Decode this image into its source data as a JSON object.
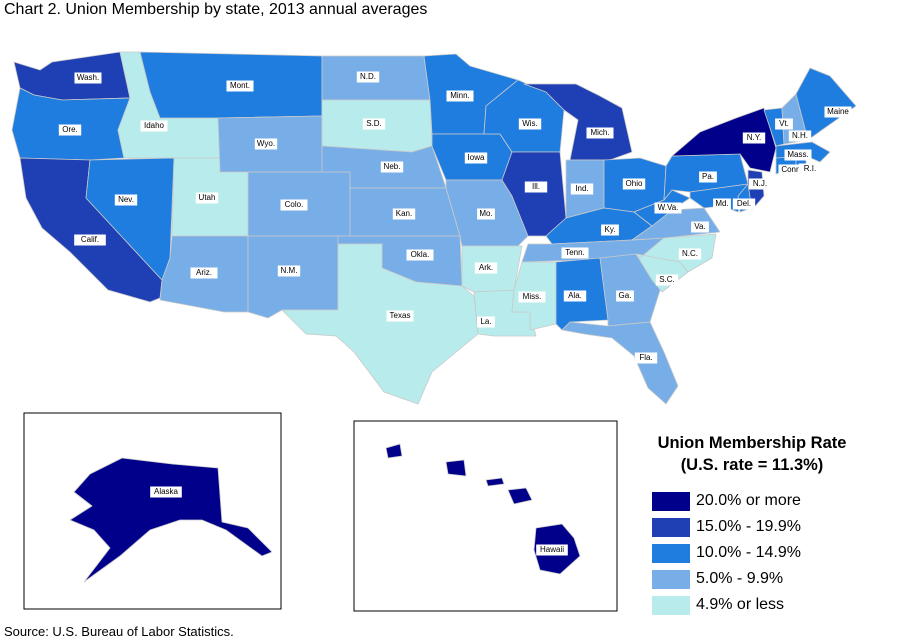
{
  "title": "Chart 2.  Union Membership by state, 2013 annual averages",
  "source": "Source: U.S. Bureau of Labor Statistics.",
  "legend": {
    "title_line1": "Union Membership Rate",
    "title_line2": "(U.S. rate = 11.3%)",
    "classes": [
      {
        "label": "20.0% or more",
        "color": "#00008b"
      },
      {
        "label": "15.0% - 19.9%",
        "color": "#1f3fb5"
      },
      {
        "label": "10.0% - 14.9%",
        "color": "#1f7de0"
      },
      {
        "label": "5.0% - 9.9%",
        "color": "#78aee8"
      },
      {
        "label": "4.9% or less",
        "color": "#b8ecec"
      }
    ]
  },
  "states": [
    {
      "label": "Wash.",
      "class": 1
    },
    {
      "label": "Ore.",
      "class": 2
    },
    {
      "label": "Calif.",
      "class": 1
    },
    {
      "label": "Idaho",
      "class": 4
    },
    {
      "label": "Nev.",
      "class": 2
    },
    {
      "label": "Utah",
      "class": 4
    },
    {
      "label": "Ariz.",
      "class": 3
    },
    {
      "label": "Mont.",
      "class": 2
    },
    {
      "label": "Wyo.",
      "class": 3
    },
    {
      "label": "Colo.",
      "class": 3
    },
    {
      "label": "N.M.",
      "class": 3
    },
    {
      "label": "N.D.",
      "class": 3
    },
    {
      "label": "S.D.",
      "class": 4
    },
    {
      "label": "Neb.",
      "class": 3
    },
    {
      "label": "Kan.",
      "class": 3
    },
    {
      "label": "Okla.",
      "class": 3
    },
    {
      "label": "Texas",
      "class": 4
    },
    {
      "label": "Minn.",
      "class": 2
    },
    {
      "label": "Iowa",
      "class": 2
    },
    {
      "label": "Mo.",
      "class": 3
    },
    {
      "label": "Ark.",
      "class": 4
    },
    {
      "label": "La.",
      "class": 4
    },
    {
      "label": "Wis.",
      "class": 2
    },
    {
      "label": "Ill.",
      "class": 1
    },
    {
      "label": "Mich.",
      "class": 1
    },
    {
      "label": "Ind.",
      "class": 3
    },
    {
      "label": "Ohio",
      "class": 2
    },
    {
      "label": "Ky.",
      "class": 2
    },
    {
      "label": "Tenn.",
      "class": 3
    },
    {
      "label": "Miss.",
      "class": 4
    },
    {
      "label": "Ala.",
      "class": 2
    },
    {
      "label": "Ga.",
      "class": 3
    },
    {
      "label": "Fla.",
      "class": 3
    },
    {
      "label": "S.C.",
      "class": 4
    },
    {
      "label": "N.C.",
      "class": 4
    },
    {
      "label": "Va.",
      "class": 3
    },
    {
      "label": "W.Va.",
      "class": 2
    },
    {
      "label": "Pa.",
      "class": 2
    },
    {
      "label": "N.Y.",
      "class": 0
    },
    {
      "label": "Md.",
      "class": 2
    },
    {
      "label": "Del.",
      "class": 2
    },
    {
      "label": "N.J.",
      "class": 1
    },
    {
      "label": "Conn.",
      "class": 2
    },
    {
      "label": "R.I.",
      "class": 2
    },
    {
      "label": "Mass.",
      "class": 2
    },
    {
      "label": "Vt.",
      "class": 2
    },
    {
      "label": "N.H.",
      "class": 3
    },
    {
      "label": "Maine",
      "class": 2
    },
    {
      "label": "Alaska",
      "class": 0
    },
    {
      "label": "Hawaii",
      "class": 0
    }
  ]
}
